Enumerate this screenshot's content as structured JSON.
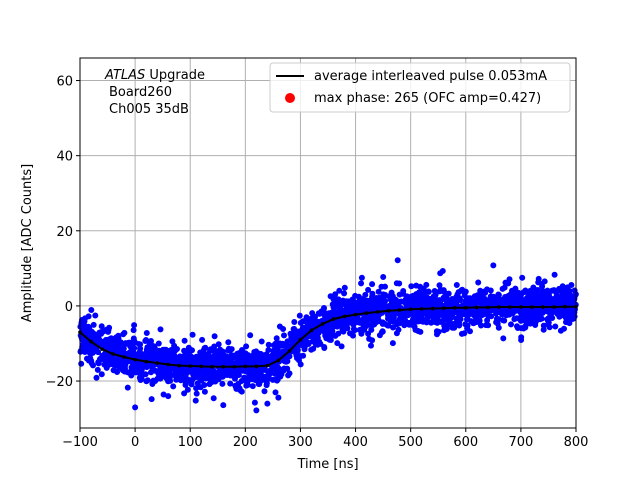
{
  "chart_data": {
    "type": "scatter",
    "xlabel": "Time [ns]",
    "ylabel": "Amplitude [ADC Counts]",
    "xlim": [
      -100,
      800
    ],
    "ylim": [
      -32.5,
      66
    ],
    "xticks": [
      -100,
      0,
      100,
      200,
      300,
      400,
      500,
      600,
      700,
      800
    ],
    "yticks": [
      -20,
      0,
      20,
      40,
      60
    ],
    "grid": true,
    "legend_position": "top-right",
    "annotation": {
      "line1_italic": "ATLAS",
      "line1_rest": " Upgrade",
      "line2": "Board260",
      "line3": "Ch005 35dB"
    },
    "series": [
      {
        "name": "average interleaved pulse 0.053mA",
        "kind": "line",
        "color": "#000000",
        "x": [
          -100,
          -80,
          -60,
          -40,
          -20,
          0,
          20,
          40,
          60,
          80,
          100,
          120,
          140,
          160,
          180,
          200,
          220,
          240,
          260,
          280,
          300,
          320,
          340,
          360,
          380,
          400,
          420,
          440,
          460,
          480,
          500,
          520,
          540,
          560,
          580,
          600,
          620,
          640,
          660,
          680,
          700,
          720,
          740,
          760,
          780,
          800
        ],
        "y": [
          -7,
          -9.5,
          -11.5,
          -12.8,
          -13.6,
          -14.3,
          -14.8,
          -15.2,
          -15.6,
          -15.9,
          -16,
          -16.1,
          -16.2,
          -16.2,
          -16.2,
          -16.1,
          -16.1,
          -15.9,
          -14.5,
          -12,
          -9,
          -6.5,
          -4.8,
          -3.5,
          -2.8,
          -2.3,
          -1.9,
          -1.6,
          -1.3,
          -1.1,
          -0.9,
          -0.8,
          -0.7,
          -0.6,
          -0.5,
          -0.5,
          -0.4,
          -0.4,
          -0.3,
          -0.3,
          -0.3,
          -0.3,
          -0.3,
          -0.3,
          -0.2,
          -0.2
        ]
      },
      {
        "name": "max phase: 265 (OFC amp=0.427)",
        "kind": "scatter",
        "color": "#ff0000"
      },
      {
        "kind": "scatter",
        "color": "#0000ff",
        "description_band": "samples scattered around the average pulse"
      }
    ]
  }
}
